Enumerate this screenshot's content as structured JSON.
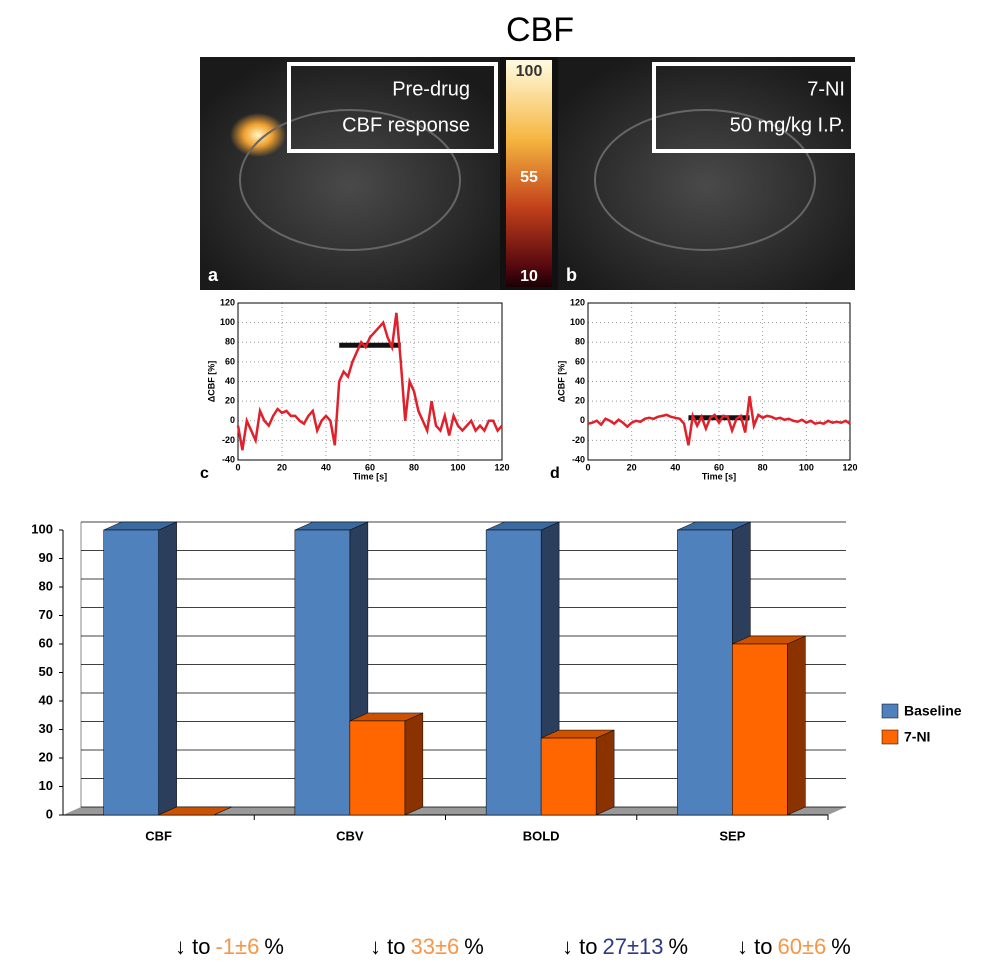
{
  "title": "CBF",
  "images": [
    {
      "label": "a",
      "caption": [
        "Pre-drug",
        "CBF response"
      ]
    },
    {
      "label": "b",
      "caption": [
        "7-NI",
        "50 mg/kg I.P."
      ]
    }
  ],
  "colorbar": {
    "ticks": [
      100,
      55,
      10
    ]
  },
  "chart_data": [
    {
      "type": "line",
      "panel": "c",
      "xlabel": "Time [s]",
      "ylabel": "ΔCBF [%]",
      "xlim": [
        0,
        120
      ],
      "ylim": [
        -40,
        120
      ],
      "xticks": [
        0,
        20,
        40,
        60,
        80,
        100,
        120
      ],
      "yticks": [
        -40,
        -20,
        0,
        20,
        40,
        60,
        80,
        100,
        120
      ],
      "grid": true,
      "stimulus": {
        "x": [
          46,
          74
        ],
        "y": 77
      },
      "x": [
        0,
        2,
        4,
        6,
        8,
        10,
        12,
        14,
        16,
        18,
        20,
        22,
        24,
        26,
        28,
        30,
        32,
        34,
        36,
        38,
        40,
        42,
        44,
        46,
        48,
        50,
        52,
        54,
        56,
        58,
        60,
        62,
        64,
        66,
        68,
        70,
        72,
        74,
        76,
        78,
        80,
        82,
        84,
        86,
        88,
        90,
        92,
        94,
        96,
        98,
        100,
        102,
        104,
        106,
        108,
        110,
        112,
        114,
        116,
        118,
        120
      ],
      "series": [
        {
          "color": "#e0202a",
          "values": [
            -5,
            -30,
            0,
            -10,
            -20,
            10,
            0,
            -5,
            5,
            12,
            8,
            10,
            5,
            5,
            0,
            -3,
            5,
            10,
            -10,
            0,
            5,
            0,
            -25,
            40,
            50,
            45,
            60,
            70,
            80,
            75,
            85,
            90,
            95,
            100,
            85,
            75,
            110,
            60,
            0,
            40,
            30,
            10,
            0,
            -10,
            20,
            -5,
            -10,
            5,
            -15,
            5,
            -5,
            -10,
            -5,
            0,
            -10,
            -5,
            -10,
            0,
            0,
            -10,
            -5
          ]
        }
      ]
    },
    {
      "type": "line",
      "panel": "d",
      "xlabel": "Time [s]",
      "ylabel": "ΔCBF [%]",
      "xlim": [
        0,
        120
      ],
      "ylim": [
        -40,
        120
      ],
      "xticks": [
        0,
        20,
        40,
        60,
        80,
        100,
        120
      ],
      "yticks": [
        -40,
        -20,
        0,
        20,
        40,
        60,
        80,
        100,
        120
      ],
      "grid": true,
      "stimulus": {
        "x": [
          46,
          74
        ],
        "y": 3
      },
      "x": [
        0,
        2,
        4,
        6,
        8,
        10,
        12,
        14,
        16,
        18,
        20,
        22,
        24,
        26,
        28,
        30,
        32,
        34,
        36,
        38,
        40,
        42,
        44,
        46,
        48,
        50,
        52,
        54,
        56,
        58,
        60,
        62,
        64,
        66,
        68,
        70,
        72,
        74,
        76,
        78,
        80,
        82,
        84,
        86,
        88,
        90,
        92,
        94,
        96,
        98,
        100,
        102,
        104,
        106,
        108,
        110,
        112,
        114,
        116,
        118,
        120
      ],
      "series": [
        {
          "color": "#e0202a",
          "values": [
            -3,
            -2,
            0,
            -4,
            2,
            0,
            -3,
            1,
            -2,
            -6,
            -2,
            0,
            -1,
            2,
            3,
            2,
            4,
            5,
            6,
            4,
            3,
            2,
            -3,
            -25,
            5,
            -5,
            4,
            -8,
            3,
            6,
            -2,
            5,
            4,
            -10,
            2,
            5,
            -12,
            25,
            -5,
            6,
            3,
            5,
            4,
            2,
            3,
            1,
            2,
            0,
            -1,
            1,
            -2,
            0,
            -3,
            -2,
            -3,
            0,
            -2,
            -1,
            -2,
            0,
            -3
          ]
        }
      ]
    },
    {
      "type": "bar",
      "categories": [
        "CBF",
        "CBV",
        "BOLD",
        "SEP"
      ],
      "ylim": [
        0,
        100
      ],
      "yticks": [
        0,
        10,
        20,
        30,
        40,
        50,
        60,
        70,
        80,
        90,
        100
      ],
      "grid": true,
      "legend": "right",
      "series": [
        {
          "name": "Baseline",
          "color": "#4f81bd",
          "values": [
            100,
            100,
            100,
            100
          ]
        },
        {
          "name": "7-NI",
          "color": "#ff6600",
          "values": [
            0,
            33,
            27,
            60
          ]
        }
      ]
    }
  ],
  "footer": [
    {
      "prefix": "↓ to",
      "value": "-1±6",
      "unit": "%",
      "color": "#f79646"
    },
    {
      "prefix": "↓ to",
      "value": "33±6",
      "unit": "%",
      "color": "#f79646"
    },
    {
      "prefix": "↓ to",
      "value": "27±13",
      "unit": "%",
      "color": "#2e3a87"
    },
    {
      "prefix": "↓ to",
      "value": "60±6",
      "unit": "%",
      "color": "#f79646"
    }
  ]
}
